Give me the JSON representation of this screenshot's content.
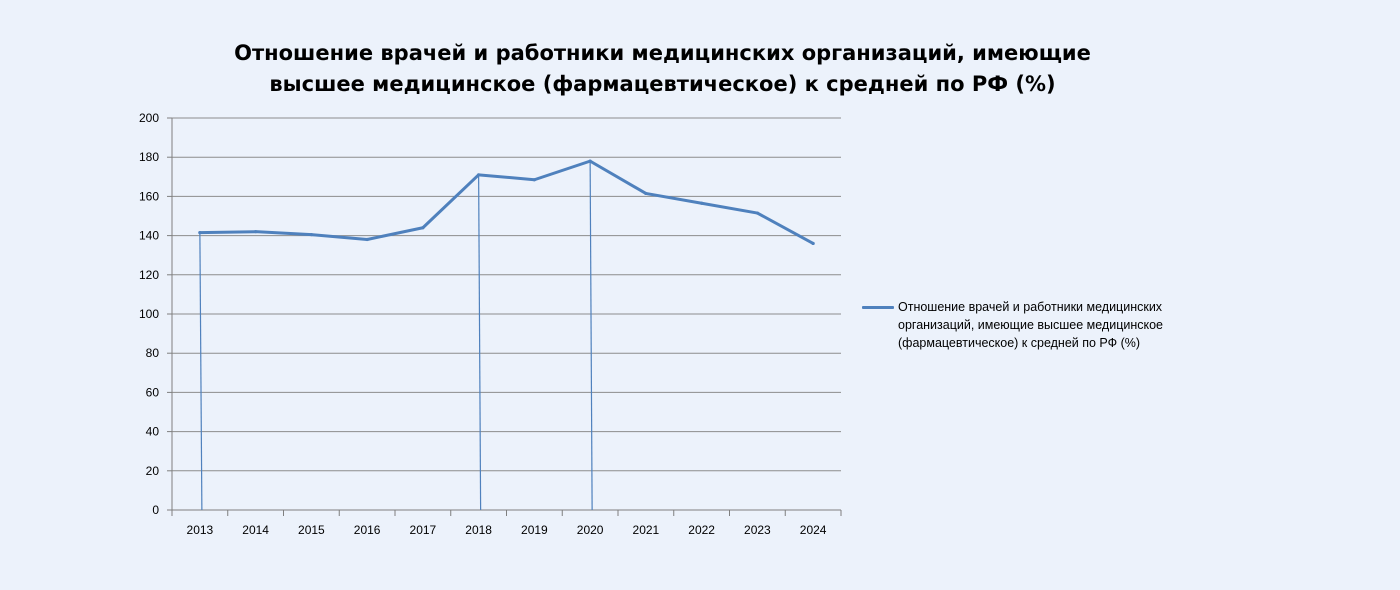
{
  "chart_data": {
    "type": "line",
    "title_lines": [
      "Отношение врачей и работники медицинских организаций, имеющие",
      "высшее медицинское (фармацевтическое) к средней по РФ (%)"
    ],
    "categories": [
      "2013",
      "2014",
      "2015",
      "2016",
      "2017",
      "2018",
      "2019",
      "2020",
      "2021",
      "2022",
      "2023",
      "2024"
    ],
    "series": [
      {
        "name": "Отношение врачей и работники медицинских организаций, имеющие высшее медицинское (фармацевтическое) к средней по РФ (%)",
        "values": [
          141.5,
          142,
          140.5,
          138,
          144,
          171,
          168.5,
          178,
          161.5,
          156.5,
          151.5,
          136
        ],
        "color": "#4f81bd"
      }
    ],
    "drop_lines_at": [
      "2013",
      "2018",
      "2020"
    ],
    "ylim": [
      0,
      200
    ],
    "yticks": [
      0,
      20,
      40,
      60,
      80,
      100,
      120,
      140,
      160,
      180,
      200
    ],
    "grid": true,
    "legend_position": "right",
    "colors": {
      "background": "#ecf2fb",
      "series": "#4f81bd",
      "grid": "#8c8c8c",
      "axis": "#7f7f7f"
    }
  }
}
